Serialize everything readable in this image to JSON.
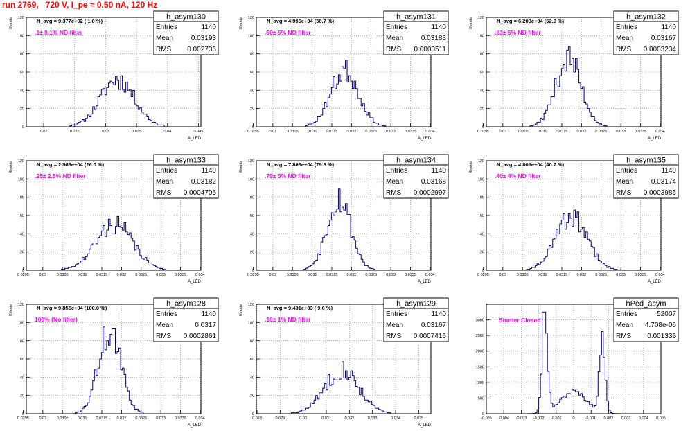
{
  "title": "run 2769,   720 V, I_pe ≈ 0.50 nA, 120 Hz",
  "colors": {
    "hist": "#000080",
    "grid": "#9a9a9a",
    "filter_text": "#ff00ff",
    "title_text": "#ff0000"
  },
  "chart_data": [
    {
      "type": "histogram",
      "name": "h_asym130",
      "navg": "N_avg = 9.377e+02 ( 1.0 %)",
      "filter": ".1± 0.1% ND filter",
      "stats": {
        "entries": "1140",
        "mean": "0.03193",
        "rms": "0.002736"
      },
      "stat_labels": [
        "Entries",
        "Mean",
        "RMS"
      ],
      "ylabel": "Events",
      "xlabel": "A_LED",
      "xlim": [
        0.0172,
        0.0454
      ],
      "ylim": [
        0,
        120
      ],
      "xticks": [
        0.02,
        0.025,
        0.03,
        0.035,
        0.04,
        0.045
      ],
      "xtick_labels": [
        "0.02",
        "0.025",
        "0.03",
        "0.035",
        "0.04",
        "0.045"
      ],
      "yticks": [
        0,
        20,
        40,
        60,
        80,
        100,
        120
      ],
      "ytick_labels": [
        "0",
        "20",
        "40",
        "60",
        "80",
        "100",
        "120"
      ],
      "mean": 0.03193,
      "rms": 0.002736,
      "peak": 52,
      "entries": 1140,
      "seed": 11
    },
    {
      "type": "histogram",
      "name": "h_asym131",
      "navg": "N_avg = 4.996e+04 (50.7 %)",
      "filter": ".50± 5% ND filter",
      "stats": {
        "entries": "1140",
        "mean": "0.03183",
        "rms": "0.0003511"
      },
      "stat_labels": [
        "Entries",
        "Mean",
        "RMS"
      ],
      "ylabel": "Events",
      "xlabel": "A_LED",
      "xlim": [
        0.02958,
        0.03402
      ],
      "ylim": [
        0,
        120
      ],
      "xticks": [
        0.0295,
        0.03,
        0.0305,
        0.031,
        0.0315,
        0.032,
        0.0325,
        0.033,
        0.0335,
        0.034
      ],
      "xtick_labels": [
        "0.0295",
        "0.03",
        "0.0305",
        "0.031",
        "0.0315",
        "0.032",
        "0.0325",
        "0.033",
        "0.0335",
        "0.034"
      ],
      "yticks": [
        0,
        20,
        40,
        60,
        80,
        100,
        120
      ],
      "ytick_labels": [
        "0",
        "20",
        "40",
        "60",
        "80",
        "100",
        "120"
      ],
      "mean": 0.03183,
      "rms": 0.0003511,
      "peak": 62,
      "entries": 1140,
      "seed": 23
    },
    {
      "type": "histogram",
      "name": "h_asym132",
      "navg": "N_avg = 6.200e+04 (62.9 %)",
      "filter": ".63± 5% ND filter",
      "stats": {
        "entries": "1140",
        "mean": "0.03167",
        "rms": "0.0003234"
      },
      "stat_labels": [
        "Entries",
        "Mean",
        "RMS"
      ],
      "ylabel": "Events",
      "xlabel": "A_LED",
      "xlim": [
        0.02958,
        0.03402
      ],
      "ylim": [
        0,
        120
      ],
      "xticks": [
        0.0295,
        0.03,
        0.0305,
        0.031,
        0.0315,
        0.032,
        0.0325,
        0.033,
        0.0335,
        0.034
      ],
      "xtick_labels": [
        "0.0295",
        "0.03",
        "0.0305",
        "0.031",
        "0.0315",
        "0.032",
        "0.0325",
        "0.033",
        "0.0335",
        "0.034"
      ],
      "yticks": [
        0,
        20,
        40,
        60,
        80,
        100,
        120
      ],
      "ytick_labels": [
        "0",
        "20",
        "40",
        "60",
        "80",
        "100",
        "120"
      ],
      "mean": 0.03167,
      "rms": 0.0003234,
      "peak": 75,
      "entries": 1140,
      "seed": 37
    },
    {
      "type": "histogram",
      "name": "h_asym133",
      "navg": "N_avg = 2.566e+04 (26.0 %)",
      "filter": ".25± 2.5% ND filter",
      "stats": {
        "entries": "1140",
        "mean": "0.03182",
        "rms": "0.0004705"
      },
      "stat_labels": [
        "Entries",
        "Mean",
        "RMS"
      ],
      "ylabel": "Events",
      "xlabel": "A_LED",
      "xlim": [
        0.02958,
        0.03402
      ],
      "ylim": [
        0,
        120
      ],
      "xticks": [
        0.0295,
        0.03,
        0.0305,
        0.031,
        0.0315,
        0.032,
        0.0325,
        0.033,
        0.0335,
        0.034
      ],
      "xtick_labels": [
        "0.0295",
        "0.03",
        "0.0305",
        "0.031",
        "0.0315",
        "0.032",
        "0.0325",
        "0.033",
        "0.0335",
        "0.034"
      ],
      "yticks": [
        0,
        20,
        40,
        60,
        80,
        100,
        120
      ],
      "ytick_labels": [
        "0",
        "20",
        "40",
        "60",
        "80",
        "100",
        "120"
      ],
      "mean": 0.03182,
      "rms": 0.0004705,
      "peak": 50,
      "entries": 1140,
      "seed": 41
    },
    {
      "type": "histogram",
      "name": "h_asym134",
      "navg": "N_avg = 7.866e+04 (79.8 %)",
      "filter": ".79± 5% ND filter",
      "stats": {
        "entries": "1140",
        "mean": "0.03168",
        "rms": "0.0002997"
      },
      "stat_labels": [
        "Entries",
        "Mean",
        "RMS"
      ],
      "ylabel": "Events",
      "xlabel": "A_LED",
      "xlim": [
        0.02958,
        0.03402
      ],
      "ylim": [
        0,
        120
      ],
      "xticks": [
        0.0295,
        0.03,
        0.0305,
        0.031,
        0.0315,
        0.032,
        0.0325,
        0.033,
        0.0335,
        0.034
      ],
      "xtick_labels": [
        "0.0295",
        "0.03",
        "0.0305",
        "0.031",
        "0.0315",
        "0.032",
        "0.0325",
        "0.033",
        "0.0335",
        "0.034"
      ],
      "yticks": [
        0,
        20,
        40,
        60,
        80,
        100,
        120
      ],
      "ytick_labels": [
        "0",
        "20",
        "40",
        "60",
        "80",
        "100",
        "120"
      ],
      "mean": 0.03168,
      "rms": 0.0002997,
      "peak": 80,
      "entries": 1140,
      "seed": 53
    },
    {
      "type": "histogram",
      "name": "h_asym135",
      "navg": "N_avg = 4.006e+04 (40.7 %)",
      "filter": ".40± 4% ND filter",
      "stats": {
        "entries": "1140",
        "mean": "0.03174",
        "rms": "0.0003986"
      },
      "stat_labels": [
        "Entries",
        "Mean",
        "RMS"
      ],
      "ylabel": "Events",
      "xlabel": "A_LED",
      "xlim": [
        0.02958,
        0.03402
      ],
      "ylim": [
        0,
        120
      ],
      "xticks": [
        0.0295,
        0.03,
        0.0305,
        0.031,
        0.0315,
        0.032,
        0.0325,
        0.033,
        0.0335,
        0.034
      ],
      "xtick_labels": [
        "0.0295",
        "0.03",
        "0.0305",
        "0.031",
        "0.0315",
        "0.032",
        "0.0325",
        "0.033",
        "0.0335",
        "0.034"
      ],
      "yticks": [
        0,
        20,
        40,
        60,
        80,
        100,
        120
      ],
      "ytick_labels": [
        "0",
        "20",
        "40",
        "60",
        "80",
        "100",
        "120"
      ],
      "mean": 0.03174,
      "rms": 0.0003986,
      "peak": 58,
      "entries": 1140,
      "seed": 61
    },
    {
      "type": "histogram",
      "name": "h_asym128",
      "navg": "N_avg = 9.855e+04 (100.0 %)",
      "filter": "100% (No filter)",
      "stats": {
        "entries": "1140",
        "mean": "0.0317",
        "rms": "0.0002861"
      },
      "stat_labels": [
        "Entries",
        "Mean",
        "RMS"
      ],
      "ylabel": "Events",
      "xlabel": "A_LED",
      "xlim": [
        0.02958,
        0.03402
      ],
      "ylim": [
        0,
        120
      ],
      "xticks": [
        0.0295,
        0.03,
        0.0305,
        0.031,
        0.0315,
        0.032,
        0.0325,
        0.033,
        0.0335,
        0.034
      ],
      "xtick_labels": [
        "0.0295",
        "0.03",
        "0.0305",
        "0.031",
        "0.0315",
        "0.032",
        "0.0325",
        "0.033",
        "0.0335",
        "0.034"
      ],
      "yticks": [
        0,
        20,
        40,
        60,
        80,
        100,
        120
      ],
      "ytick_labels": [
        "0",
        "20",
        "40",
        "60",
        "80",
        "100",
        "120"
      ],
      "mean": 0.0317,
      "rms": 0.0002861,
      "peak": 90,
      "entries": 1140,
      "seed": 71
    },
    {
      "type": "histogram",
      "name": "h_asym129",
      "navg": "N_avg = 9.431e+03 ( 9.6 %)",
      "filter": ".10± 1% ND filter",
      "stats": {
        "entries": "1140",
        "mean": "0.03167",
        "rms": "0.0007416"
      },
      "stat_labels": [
        "Entries",
        "Mean",
        "RMS"
      ],
      "ylabel": "Events",
      "xlabel": "A_LED",
      "xlim": [
        0.02797,
        0.03553
      ],
      "ylim": [
        0,
        120
      ],
      "xticks": [
        0.028,
        0.029,
        0.03,
        0.031,
        0.032,
        0.033,
        0.034,
        0.035
      ],
      "xtick_labels": [
        "0.028",
        "0.029",
        "0.03",
        "0.031",
        "0.032",
        "0.033",
        "0.034",
        "0.035"
      ],
      "yticks": [
        0,
        20,
        40,
        60,
        80,
        100,
        120
      ],
      "ytick_labels": [
        "0",
        "20",
        "40",
        "60",
        "80",
        "100",
        "120"
      ],
      "mean": 0.03167,
      "rms": 0.0007416,
      "peak": 48,
      "entries": 1140,
      "seed": 83
    },
    {
      "type": "histogram",
      "name": "hPed_asym",
      "navg": "",
      "filter": "Shutter Closed",
      "stats": {
        "entries": "52007",
        "mean": "4.708e-06",
        "rms": "0.001336"
      },
      "stat_labels": [
        "Entries",
        "Mean",
        "RMS"
      ],
      "ylabel": "",
      "xlabel": "",
      "xlim": [
        -0.005,
        0.005
      ],
      "ylim": [
        0,
        3500
      ],
      "xticks": [
        -0.005,
        -0.004,
        -0.003,
        -0.002,
        -0.001,
        0,
        0.001,
        0.002,
        0.003,
        0.004,
        0.005
      ],
      "xtick_labels": [
        "-0.005",
        "-0.004",
        "-0.003",
        "-0.002",
        "-0.001",
        "0",
        "0.001",
        "0.002",
        "0.003",
        "0.004",
        "0.005"
      ],
      "yticks": [
        0,
        500,
        1000,
        1500,
        2000,
        2500,
        3000
      ],
      "ytick_labels": [
        "0",
        "500",
        "1000",
        "1500",
        "2000",
        "2500",
        "3000"
      ],
      "mean": 0.0,
      "rms": 0.001336,
      "peak": 3250,
      "entries": 52007,
      "seed": 97,
      "shape": "bimodal"
    }
  ]
}
